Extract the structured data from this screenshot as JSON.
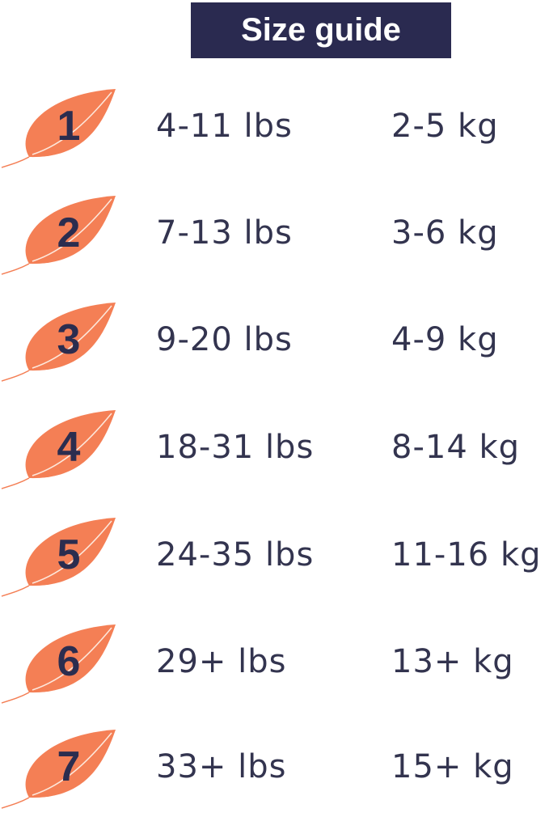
{
  "title": "Size guide",
  "colors": {
    "leaf": "#f47f55",
    "title_bg": "#2a2a50",
    "text": "#33344f"
  },
  "sizes": [
    {
      "size": "1",
      "lbs": "4-11 lbs",
      "kg": "2-5 kg"
    },
    {
      "size": "2",
      "lbs": "7-13 lbs",
      "kg": "3-6 kg"
    },
    {
      "size": "3",
      "lbs": "9-20 lbs",
      "kg": "4-9 kg"
    },
    {
      "size": "4",
      "lbs": "18-31 lbs",
      "kg": "8-14 kg"
    },
    {
      "size": "5",
      "lbs": "24-35 lbs",
      "kg": "11-16 kg"
    },
    {
      "size": "6",
      "lbs": "29+ lbs",
      "kg": "13+ kg"
    },
    {
      "size": "7",
      "lbs": "33+ lbs",
      "kg": "15+ kg"
    }
  ]
}
